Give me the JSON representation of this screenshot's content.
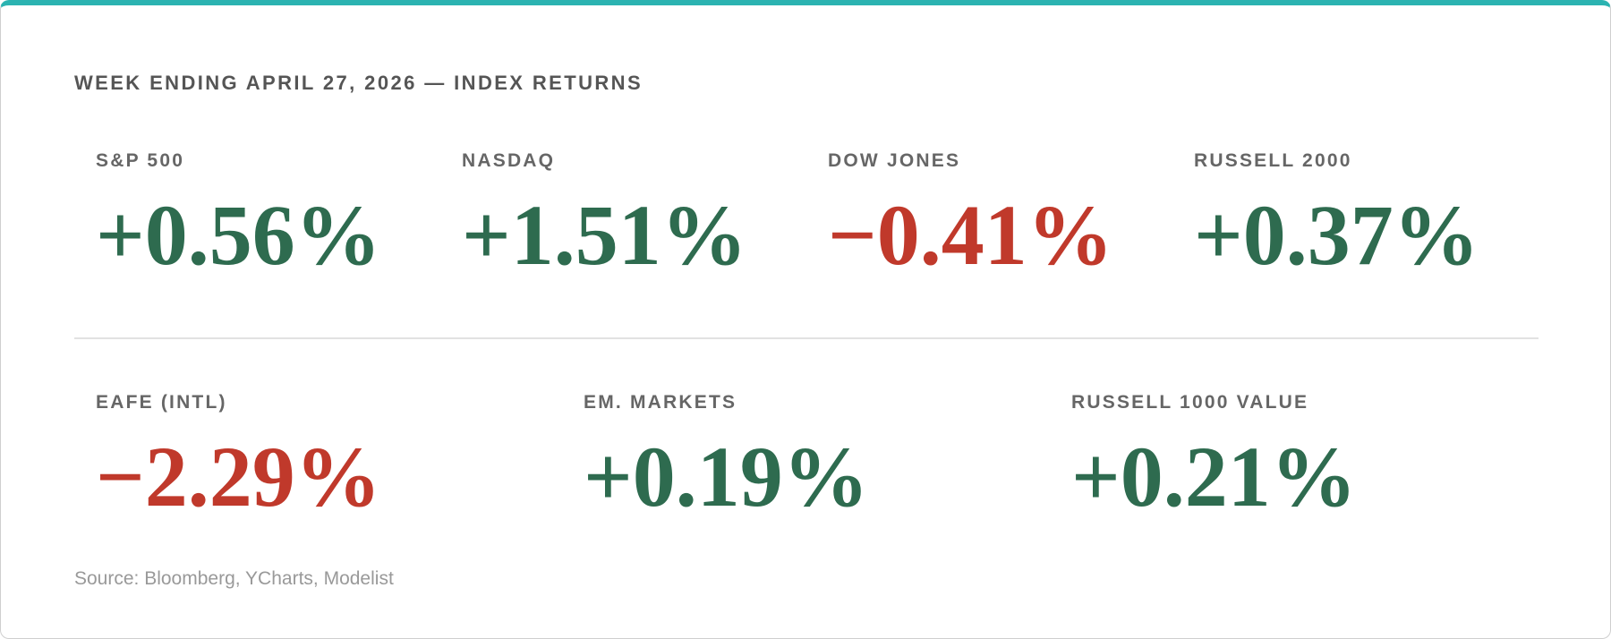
{
  "header": {
    "title": "WEEK ENDING APRIL 27, 2026 — INDEX RETURNS"
  },
  "rows": [
    {
      "items": [
        {
          "label": "S&P 500",
          "value": "+0.56%",
          "color": "#2e6b4f"
        },
        {
          "label": "NASDAQ",
          "value": "+1.51%",
          "color": "#2e6b4f"
        },
        {
          "label": "DOW JONES",
          "value": "−0.41%",
          "color": "#c0392b"
        },
        {
          "label": "RUSSELL 2000",
          "value": "+0.37%",
          "color": "#2e6b4f"
        }
      ]
    },
    {
      "items": [
        {
          "label": "EAFE (INTL)",
          "value": "−2.29%",
          "color": "#c0392b"
        },
        {
          "label": "EM. MARKETS",
          "value": "+0.19%",
          "color": "#2e6b4f"
        },
        {
          "label": "RUSSELL 1000 VALUE",
          "value": "+0.21%",
          "color": "#2e6b4f"
        }
      ]
    }
  ],
  "footer": {
    "source": "Source: Bloomberg, YCharts, Modelist"
  }
}
